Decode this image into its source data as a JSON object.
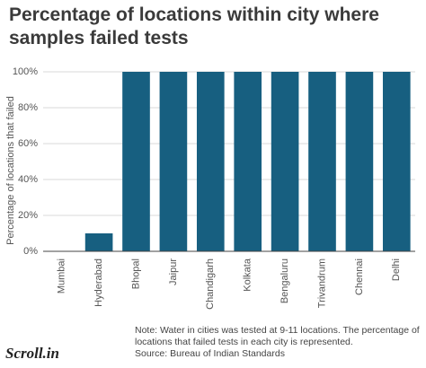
{
  "chart_data": {
    "type": "bar",
    "title": "Percentage of locations within city where samples failed tests",
    "y_label": "Percentage of locations that failed",
    "categories": [
      "Mumbai",
      "Hyderabad",
      "Bhopal",
      "Jaipur",
      "Chandigarh",
      "Kolkata",
      "Bengaluru",
      "Trivandrum",
      "Chennai",
      "Delhi"
    ],
    "values": [
      0,
      10,
      100,
      100,
      100,
      100,
      100,
      100,
      100,
      100
    ],
    "color": "#175f80",
    "ylim": [
      0,
      100
    ],
    "yticks": [
      {
        "value": 0,
        "label": "0%"
      },
      {
        "value": 20,
        "label": "20%"
      },
      {
        "value": 40,
        "label": "40%"
      },
      {
        "value": 60,
        "label": "60%"
      },
      {
        "value": 80,
        "label": "80%"
      },
      {
        "value": 100,
        "label": "100%"
      }
    ],
    "grid": true,
    "note": "Note: Water in cities was tested at 9-11 locations. The percentage of locations that failed tests in each city is represented.",
    "source": "Source: Bureau of Indian Standards",
    "logo": "Scroll.in"
  }
}
